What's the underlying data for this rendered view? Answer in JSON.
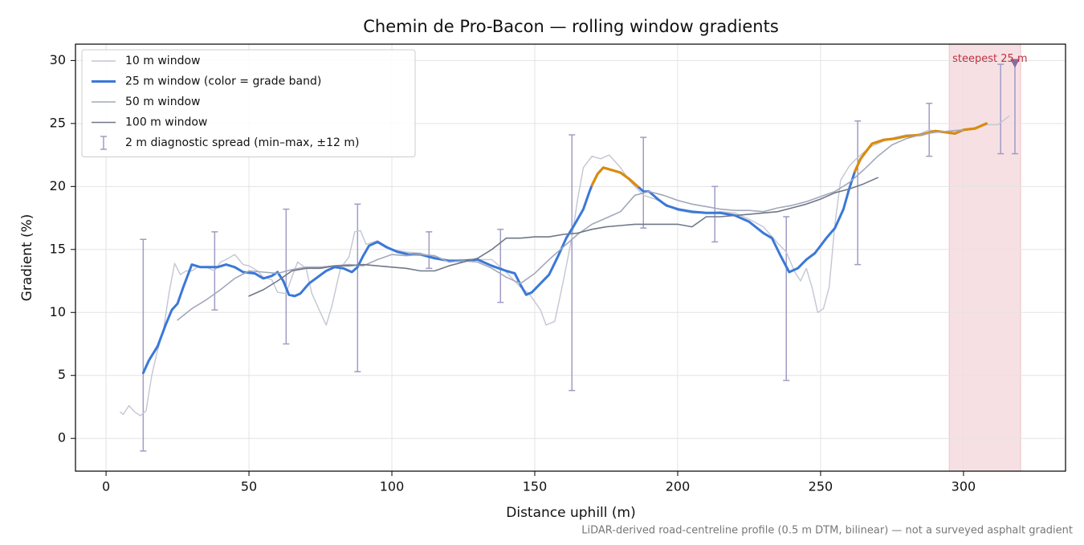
{
  "chart_data": {
    "type": "line",
    "title": "Chemin de Pro-Bacon — rolling window gradients",
    "xlabel": "Distance uphill (m)",
    "ylabel": "Gradient (%)",
    "footnote": "LiDAR-derived road-centreline profile (0.5 m DTM, bilinear) — not a surveyed asphalt gradient",
    "xlim": [
      -10.7,
      335.7
    ],
    "ylim": [
      -2.6,
      31.3
    ],
    "xticks": [
      0,
      50,
      100,
      150,
      200,
      250,
      300
    ],
    "yticks": [
      0,
      5,
      10,
      15,
      20,
      25,
      30
    ],
    "grid": true,
    "legend": "upper left",
    "series": [
      {
        "name": "10 m window",
        "color": "#c3c6d2",
        "width": 1.4,
        "x": [
          5,
          6,
          8,
          10,
          12,
          14,
          16,
          18,
          20,
          22,
          24,
          26,
          28,
          30,
          32,
          35,
          38,
          40,
          42,
          45,
          48,
          50,
          53,
          55,
          58,
          60,
          63,
          65,
          67,
          70,
          72,
          75,
          77,
          79,
          82,
          85,
          87,
          89,
          91,
          95,
          100,
          105,
          110,
          115,
          120,
          125,
          130,
          135,
          140,
          145,
          148,
          152,
          154,
          157,
          160,
          163,
          165,
          167,
          170,
          173,
          176,
          178,
          180,
          183,
          185,
          188,
          192,
          196,
          200,
          205,
          210,
          215,
          220,
          225,
          230,
          235,
          238,
          241,
          243,
          245,
          247,
          249,
          251,
          253,
          255,
          257,
          260,
          262,
          265,
          268,
          272,
          276,
          280,
          284,
          288,
          292,
          296,
          300,
          304,
          308,
          312,
          316
        ],
        "values": [
          2.1,
          1.9,
          2.6,
          2.1,
          1.8,
          2.2,
          5,
          7,
          8.5,
          11.5,
          13.9,
          13,
          13.3,
          13.3,
          13.6,
          13.6,
          13.3,
          14,
          14.2,
          14.6,
          13.8,
          13.7,
          13.3,
          12.8,
          12.6,
          11.6,
          11.5,
          12.8,
          14,
          13.5,
          11.5,
          10,
          9,
          10.5,
          13.5,
          14.4,
          16.4,
          16.5,
          15.4,
          15.7,
          15,
          14.8,
          14.7,
          14.4,
          14.1,
          14.2,
          14.2,
          14.2,
          13.2,
          12,
          11.5,
          10.2,
          9,
          9.3,
          12.5,
          16,
          19,
          21.5,
          22.4,
          22.2,
          22.5,
          22,
          21.5,
          20.5,
          20,
          19.3,
          19,
          18.6,
          18.1,
          17.9,
          17.9,
          18,
          17.9,
          17.4,
          16.8,
          15.5,
          14.8,
          13.2,
          12.5,
          13.5,
          12,
          10,
          10.3,
          12,
          17,
          20.5,
          21.6,
          22.1,
          22.7,
          23.2,
          23.6,
          23.9,
          24.1,
          24.1,
          24.5,
          24.3,
          24.4,
          24.5,
          24.6,
          24.9,
          24.9,
          25.6
        ]
      },
      {
        "name": "25 m window (color = grade band)",
        "color": "#3a78d8",
        "width": 3,
        "band": {
          "min": 20,
          "color": "#e08a00"
        },
        "x": [
          13,
          15,
          18,
          21,
          23,
          25,
          27,
          30,
          33,
          36,
          39,
          42,
          45,
          48,
          52,
          55,
          58,
          60,
          62,
          64,
          66,
          68,
          71,
          74,
          77,
          80,
          83,
          86,
          88,
          90,
          92,
          95,
          98,
          102,
          106,
          110,
          115,
          120,
          125,
          130,
          135,
          140,
          143,
          145,
          147,
          149,
          152,
          155,
          158,
          161,
          164,
          167,
          169,
          170,
          172,
          174,
          177,
          180,
          183,
          186,
          188,
          190,
          193,
          196,
          200,
          205,
          210,
          215,
          220,
          225,
          230,
          233,
          236,
          239,
          242,
          245,
          248,
          252,
          255,
          258,
          260,
          262,
          264,
          266,
          268,
          272,
          276,
          280,
          285,
          290,
          294,
          297,
          300,
          304,
          308
        ],
        "values": [
          5.2,
          6.2,
          7.3,
          9.1,
          10.2,
          10.7,
          12,
          13.8,
          13.6,
          13.6,
          13.6,
          13.8,
          13.6,
          13.2,
          13.1,
          12.7,
          12.9,
          13.2,
          12.5,
          11.4,
          11.3,
          11.5,
          12.3,
          12.8,
          13.3,
          13.6,
          13.5,
          13.2,
          13.6,
          14.5,
          15.3,
          15.6,
          15.2,
          14.8,
          14.6,
          14.6,
          14.3,
          14.1,
          14.1,
          14.2,
          13.7,
          13.3,
          13.1,
          12.2,
          11.4,
          11.6,
          12.3,
          13,
          14.4,
          15.9,
          17,
          18.2,
          19.5,
          20.1,
          21,
          21.5,
          21.3,
          21.1,
          20.6,
          20,
          19.6,
          19.6,
          19,
          18.5,
          18.2,
          18,
          17.9,
          17.9,
          17.7,
          17.2,
          16.3,
          15.9,
          14.5,
          13.2,
          13.5,
          14.2,
          14.7,
          15.9,
          16.7,
          18.2,
          19.8,
          21.2,
          22.2,
          22.8,
          23.4,
          23.7,
          23.8,
          24,
          24.1,
          24.4,
          24.3,
          24.2,
          24.5,
          24.6,
          25
        ]
      },
      {
        "name": "50 m window",
        "color": "#a2a8ba",
        "width": 1.6,
        "x": [
          25,
          30,
          35,
          40,
          45,
          50,
          55,
          60,
          65,
          70,
          75,
          80,
          85,
          90,
          95,
          100,
          105,
          110,
          115,
          120,
          125,
          130,
          135,
          140,
          145,
          150,
          155,
          160,
          165,
          170,
          175,
          180,
          185,
          190,
          195,
          200,
          205,
          210,
          215,
          220,
          225,
          230,
          235,
          240,
          245,
          250,
          255,
          260,
          265,
          270,
          275,
          280,
          285,
          290,
          295,
          300
        ],
        "values": [
          9.4,
          10.3,
          11,
          11.8,
          12.7,
          13.3,
          13.2,
          13.1,
          13.4,
          13.6,
          13.6,
          13.7,
          13.8,
          13.7,
          14.2,
          14.6,
          14.5,
          14.6,
          14.5,
          14,
          14.1,
          14,
          13.5,
          12.8,
          12.3,
          13.1,
          14.2,
          15.2,
          16.2,
          17,
          17.5,
          18,
          19.3,
          19.6,
          19.3,
          18.9,
          18.6,
          18.4,
          18.2,
          18.1,
          18.1,
          18,
          18.3,
          18.5,
          18.8,
          19.2,
          19.6,
          20.3,
          21.3,
          22.4,
          23.3,
          23.8,
          24.1,
          24.3,
          24.4,
          24.5
        ]
      },
      {
        "name": "100 m window",
        "color": "#6f7888",
        "width": 1.6,
        "x": [
          50,
          55,
          60,
          65,
          70,
          75,
          80,
          85,
          90,
          95,
          100,
          105,
          110,
          115,
          120,
          125,
          130,
          135,
          140,
          145,
          150,
          155,
          160,
          165,
          170,
          175,
          180,
          185,
          190,
          195,
          200,
          205,
          210,
          215,
          220,
          225,
          230,
          235,
          240,
          245,
          250,
          255,
          260,
          265,
          270
        ],
        "values": [
          11.3,
          11.8,
          12.5,
          13.3,
          13.5,
          13.5,
          13.7,
          13.7,
          13.8,
          13.7,
          13.6,
          13.5,
          13.3,
          13.3,
          13.7,
          14,
          14.3,
          15,
          15.9,
          15.9,
          16,
          16,
          16.2,
          16.3,
          16.6,
          16.8,
          16.9,
          17,
          17,
          17,
          17,
          16.8,
          17.6,
          17.6,
          17.7,
          17.8,
          17.9,
          18,
          18.3,
          18.6,
          19,
          19.5,
          19.8,
          20.2,
          20.7
        ]
      }
    ],
    "error_bars": {
      "name": "2 m diagnostic spread (min–max, ±12 m)",
      "color": "#9f9cc4",
      "x": [
        13,
        38,
        63,
        88,
        113,
        138,
        163,
        188,
        213,
        238,
        263,
        288,
        313,
        318
      ],
      "low": [
        -1,
        10.2,
        7.5,
        5.3,
        13.5,
        10.8,
        3.8,
        16.7,
        15.6,
        4.6,
        13.8,
        22.4,
        22.6,
        22.6
      ],
      "high": [
        15.8,
        16.4,
        18.2,
        18.6,
        16.4,
        16.6,
        24.1,
        23.9,
        20,
        17.6,
        25.2,
        26.6,
        29.7,
        29.9
      ]
    },
    "shaded_span": {
      "x": [
        295,
        320
      ],
      "color": "#e8a6ae"
    },
    "annotation": {
      "text": "steepest 25 m",
      "x": 318,
      "y": 29.8,
      "color": "#c0303f",
      "marker_color": "#8a6a9e"
    }
  }
}
